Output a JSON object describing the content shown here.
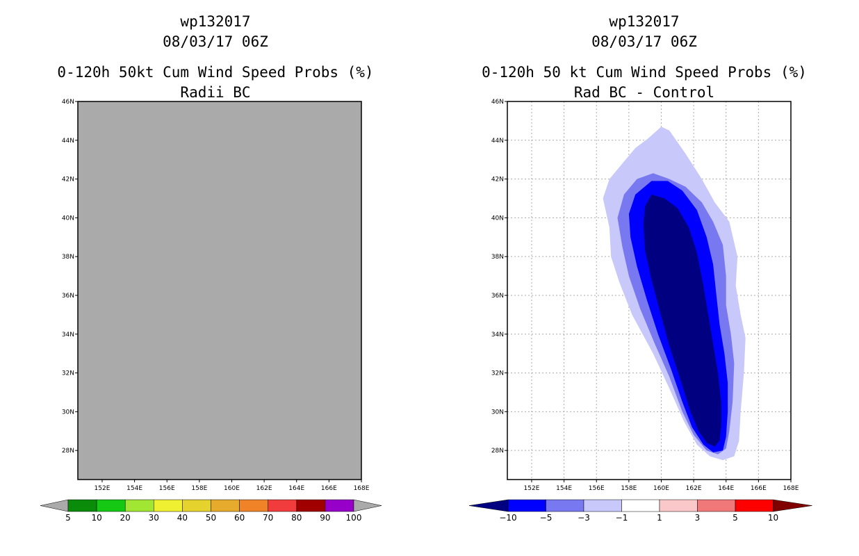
{
  "chart_data": [
    {
      "type": "heatmap",
      "storm_id": "wp132017",
      "date": "08/03/17 06Z",
      "title": "0-120h 50kt Cum Wind Speed Probs (%)",
      "subtitle": "Radii BC",
      "xlim": [
        150.5,
        168
      ],
      "ylim": [
        26.5,
        46
      ],
      "x_ticks": [
        "152E",
        "154E",
        "156E",
        "158E",
        "160E",
        "162E",
        "164E",
        "166E",
        "168E"
      ],
      "y_ticks": [
        "28N",
        "30N",
        "32N",
        "34N",
        "36N",
        "38N",
        "40N",
        "42N",
        "44N",
        "46N"
      ],
      "grid": false,
      "field": "no data (uniform grey fill)",
      "colors": {
        "nodata": "#aaaaaa",
        "frame": "#000000"
      },
      "colorbar": {
        "labels": [
          "5",
          "10",
          "20",
          "30",
          "40",
          "50",
          "60",
          "70",
          "80",
          "90",
          "100"
        ],
        "colors": [
          "#0a8c0a",
          "#14c814",
          "#a0e632",
          "#f0f032",
          "#e6d22d",
          "#e6aa2d",
          "#f08228",
          "#f03c3c",
          "#a00000",
          "#9600c8"
        ],
        "end_color": "#aaaaaa"
      }
    },
    {
      "type": "heatmap",
      "storm_id": "wp132017",
      "date": "08/03/17 06Z",
      "title": "0-120h 50 kt Cum Wind Speed Probs (%)",
      "subtitle": "Rad BC - Control",
      "xlim": [
        150.5,
        168
      ],
      "ylim": [
        26.5,
        46
      ],
      "x_ticks": [
        "152E",
        "154E",
        "156E",
        "158E",
        "160E",
        "162E",
        "164E",
        "166E",
        "168E"
      ],
      "y_ticks": [
        "28N",
        "30N",
        "32N",
        "34N",
        "36N",
        "38N",
        "40N",
        "42N",
        "44N",
        "46N"
      ],
      "grid": true,
      "colors": {
        "grid": "#aaaaaa",
        "frame": "#000000"
      },
      "contours": [
        {
          "level": "-1 to -3",
          "color": "#c8c8fa",
          "points": [
            [
              160.0,
              44.7
            ],
            [
              160.5,
              44.5
            ],
            [
              161.5,
              43.3
            ],
            [
              162.5,
              42.0
            ],
            [
              163.3,
              40.8
            ],
            [
              164.2,
              39.8
            ],
            [
              164.7,
              38.0
            ],
            [
              164.6,
              36.5
            ],
            [
              164.9,
              35.0
            ],
            [
              165.2,
              33.8
            ],
            [
              165.1,
              32.0
            ],
            [
              164.9,
              30.0
            ],
            [
              164.8,
              28.5
            ],
            [
              164.5,
              27.7
            ],
            [
              163.8,
              27.5
            ],
            [
              163.0,
              27.7
            ],
            [
              162.2,
              28.3
            ],
            [
              161.4,
              29.5
            ],
            [
              160.5,
              31.2
            ],
            [
              159.5,
              33.0
            ],
            [
              158.2,
              35.0
            ],
            [
              157.4,
              36.7
            ],
            [
              156.9,
              38.0
            ],
            [
              156.8,
              39.5
            ],
            [
              156.4,
              41.0
            ],
            [
              156.8,
              42.0
            ],
            [
              157.6,
              42.8
            ],
            [
              158.4,
              43.6
            ],
            [
              159.2,
              44.1
            ]
          ]
        },
        {
          "level": "-3 to -5",
          "color": "#7878f0",
          "points": [
            [
              159.5,
              42.3
            ],
            [
              160.5,
              42.0
            ],
            [
              161.5,
              41.6
            ],
            [
              162.5,
              40.8
            ],
            [
              163.2,
              39.8
            ],
            [
              163.8,
              38.6
            ],
            [
              164.0,
              37.0
            ],
            [
              164.0,
              35.5
            ],
            [
              164.3,
              34.0
            ],
            [
              164.5,
              32.5
            ],
            [
              164.4,
              30.5
            ],
            [
              164.2,
              29.0
            ],
            [
              164.0,
              28.1
            ],
            [
              163.5,
              27.8
            ],
            [
              162.8,
              28.0
            ],
            [
              162.0,
              28.8
            ],
            [
              161.3,
              30.0
            ],
            [
              160.5,
              31.8
            ],
            [
              159.6,
              33.5
            ],
            [
              158.7,
              35.3
            ],
            [
              158.0,
              37.0
            ],
            [
              157.6,
              38.5
            ],
            [
              157.3,
              40.0
            ],
            [
              157.7,
              41.2
            ],
            [
              158.5,
              42.0
            ]
          ]
        },
        {
          "level": "-5 to -10",
          "color": "#0000ff",
          "points": [
            [
              159.4,
              41.9
            ],
            [
              160.4,
              41.9
            ],
            [
              161.3,
              41.4
            ],
            [
              162.2,
              40.4
            ],
            [
              162.8,
              39.0
            ],
            [
              163.2,
              37.6
            ],
            [
              163.4,
              36.0
            ],
            [
              163.6,
              34.5
            ],
            [
              163.9,
              33.0
            ],
            [
              164.1,
              31.5
            ],
            [
              164.1,
              30.0
            ],
            [
              164.0,
              28.7
            ],
            [
              163.8,
              28.0
            ],
            [
              163.2,
              27.9
            ],
            [
              162.6,
              28.3
            ],
            [
              161.9,
              29.2
            ],
            [
              161.3,
              30.5
            ],
            [
              160.6,
              32.2
            ],
            [
              159.8,
              34.0
            ],
            [
              159.1,
              35.8
            ],
            [
              158.5,
              37.5
            ],
            [
              158.1,
              39.0
            ],
            [
              158.0,
              40.2
            ],
            [
              158.4,
              41.2
            ]
          ]
        },
        {
          "level": "< -10",
          "color": "#000080",
          "points": [
            [
              159.4,
              41.2
            ],
            [
              160.2,
              41.0
            ],
            [
              161.0,
              40.5
            ],
            [
              161.7,
              39.5
            ],
            [
              162.2,
              38.2
            ],
            [
              162.6,
              36.5
            ],
            [
              162.9,
              35.0
            ],
            [
              163.2,
              33.5
            ],
            [
              163.5,
              32.0
            ],
            [
              163.7,
              30.5
            ],
            [
              163.7,
              29.3
            ],
            [
              163.6,
              28.5
            ],
            [
              163.3,
              28.2
            ],
            [
              162.8,
              28.4
            ],
            [
              162.3,
              29.0
            ],
            [
              161.8,
              30.0
            ],
            [
              161.2,
              31.6
            ],
            [
              160.5,
              33.4
            ],
            [
              159.9,
              35.2
            ],
            [
              159.4,
              36.8
            ],
            [
              159.0,
              38.3
            ],
            [
              158.9,
              39.7
            ],
            [
              159.0,
              40.6
            ]
          ]
        }
      ],
      "colorbar": {
        "labels": [
          "-10",
          "-5",
          "-3",
          "-1",
          "1",
          "3",
          "5",
          "10"
        ],
        "colors": [
          "#0000ff",
          "#7878f0",
          "#c8c8fa",
          "#ffffff",
          "#fac8c8",
          "#f07878",
          "#ff0000"
        ],
        "end_low": "#000080",
        "end_high": "#800000"
      }
    }
  ]
}
